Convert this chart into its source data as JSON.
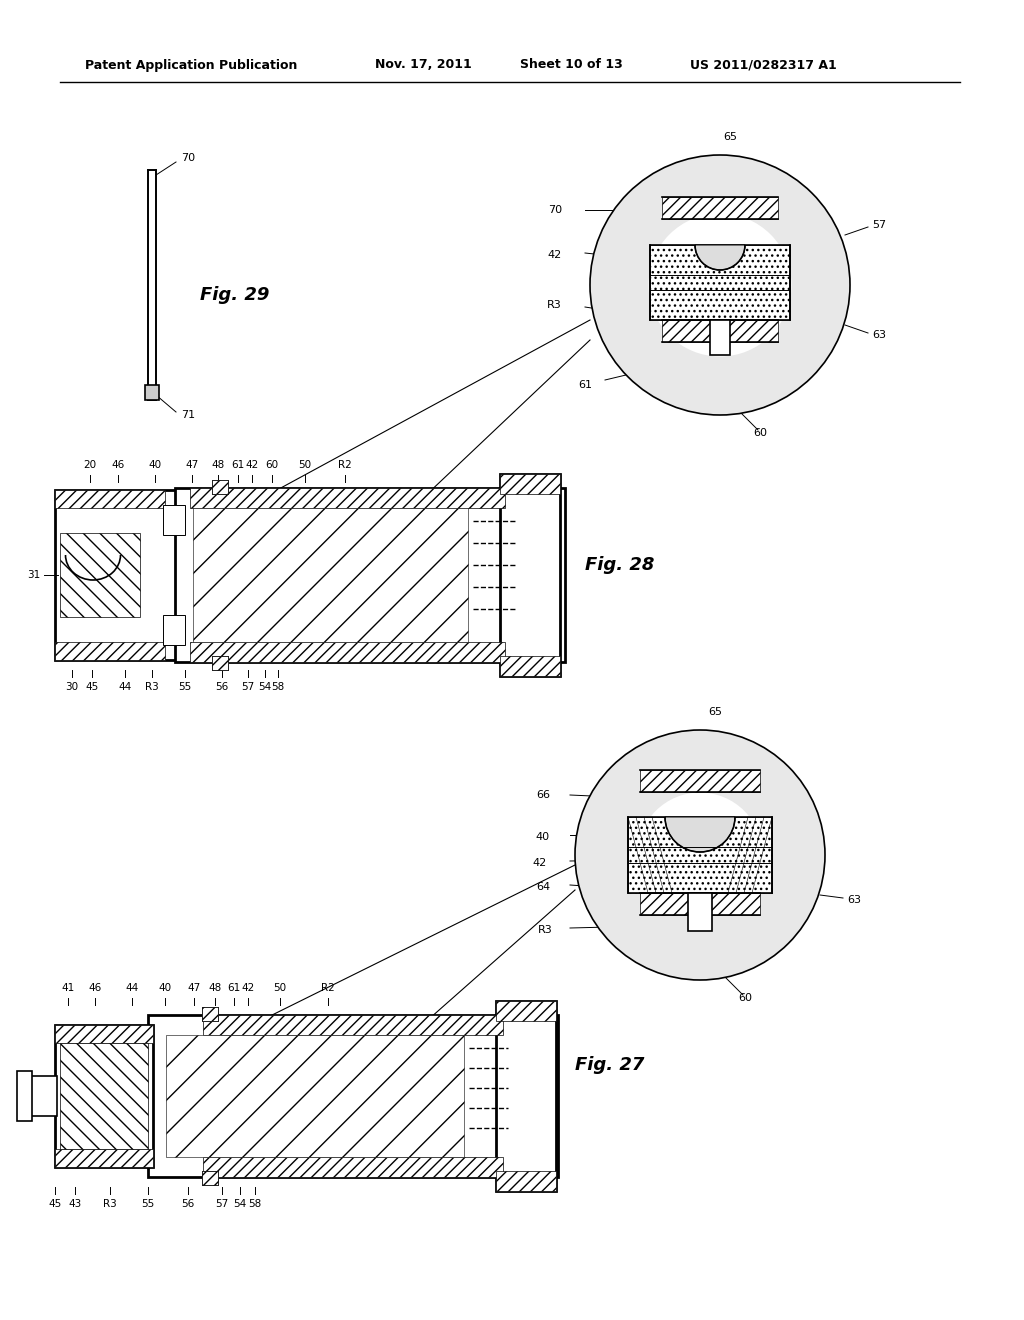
{
  "background_color": "#ffffff",
  "header_text": "Patent Application Publication",
  "header_date": "Nov. 17, 2011",
  "header_sheet": "Sheet 10 of 13",
  "header_patent": "US 2011/0282317 A1",
  "line_color": "#000000",
  "fig_label_color": "#000000"
}
